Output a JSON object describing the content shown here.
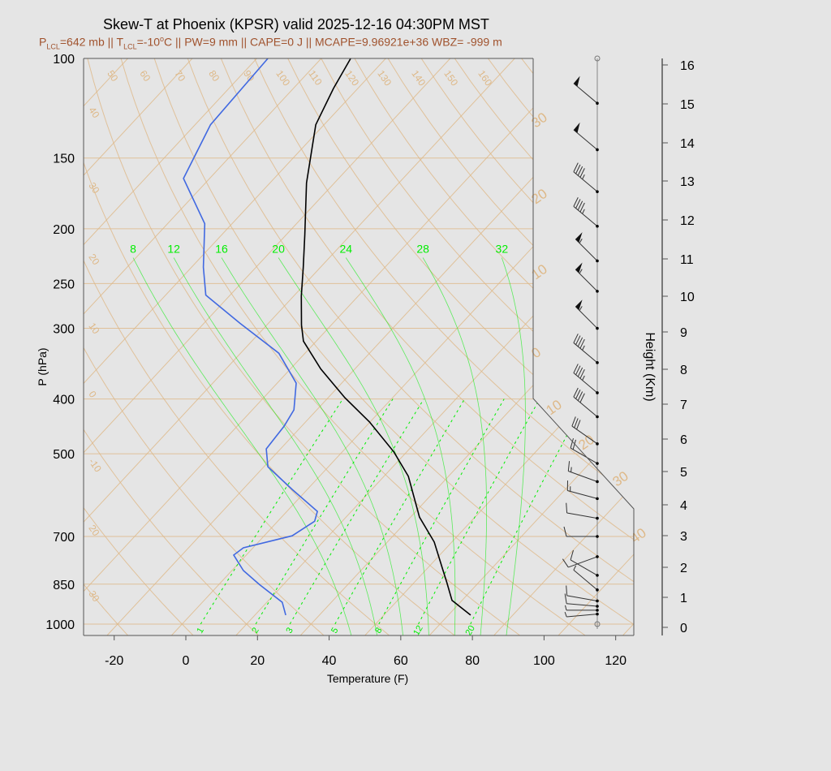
{
  "title": "Skew-T at Phoenix (KPSR) valid 2025-12-16 04:30PM MST",
  "subtitle": {
    "p_lcl_prefix": "P",
    "p_lcl_sub": "LCL",
    "p_lcl_value": "=642 mb || ",
    "t_lcl_prefix": "T",
    "t_lcl_sub": "LCL",
    "t_lcl_value": "=-10",
    "t_lcl_unit_sup": "o",
    "t_lcl_rest": "C || PW=9 mm || CAPE=0 J || MCAPE=9.96921e+36 WBZ= -999 m"
  },
  "colors": {
    "temperature": "#000000",
    "dewpoint": "#4169e1",
    "grid": "#deb887",
    "moist": "#00ee00",
    "subtitle": "#a0522d"
  },
  "chart_data": {
    "type": "line",
    "xlabel": "Temperature (F)",
    "ylabel": "P (hPa)",
    "y2label": "Height (Km)",
    "x_ticks": [
      -20,
      0,
      20,
      40,
      60,
      80,
      100,
      120
    ],
    "xlim": [
      -28,
      125
    ],
    "y_ticks": [
      100,
      150,
      200,
      250,
      300,
      400,
      500,
      700,
      850,
      1000
    ],
    "ylim": [
      1050,
      100
    ],
    "y_scale": "log",
    "y2_ticks": [
      0,
      1,
      2,
      3,
      4,
      5,
      6,
      7,
      8,
      9,
      10,
      11,
      12,
      13,
      14,
      15,
      16
    ],
    "skewed": true,
    "series": [
      {
        "key": "temperature",
        "points": [
          [
            964,
            74.2
          ],
          [
            908,
            65.2
          ],
          [
            845,
            59.2
          ],
          [
            796,
            54.1
          ],
          [
            716,
            45.1
          ],
          [
            647,
            34.5
          ],
          [
            548,
            20.8
          ],
          [
            496,
            10.4
          ],
          [
            439,
            -4.2
          ],
          [
            398,
            -17.3
          ],
          [
            354,
            -31.5
          ],
          [
            316,
            -43.6
          ],
          [
            296,
            -48.3
          ],
          [
            263,
            -55.9
          ],
          [
            234,
            -62.8
          ],
          [
            205,
            -70.8
          ],
          [
            166,
            -83.8
          ],
          [
            131,
            -96.3
          ],
          [
            113,
            -100.8
          ],
          [
            100,
            -103.8
          ]
        ]
      },
      {
        "key": "dewpoint",
        "points": [
          [
            964,
            22.6
          ],
          [
            915,
            18.3
          ],
          [
            851,
            7.3
          ],
          [
            804,
            -0.8
          ],
          [
            755,
            -7.5
          ],
          [
            733,
            -6.7
          ],
          [
            698,
            3.8
          ],
          [
            658,
            6.3
          ],
          [
            632,
            4.5
          ],
          [
            578,
            -8.2
          ],
          [
            527,
            -20.9
          ],
          [
            490,
            -26.0
          ],
          [
            447,
            -26.9
          ],
          [
            418,
            -28.4
          ],
          [
            375,
            -34.7
          ],
          [
            332,
            -47.3
          ],
          [
            294,
            -65.9
          ],
          [
            262,
            -82.8
          ],
          [
            234,
            -90.7
          ],
          [
            196,
            -101.6
          ],
          [
            163,
            -119.3
          ],
          [
            131,
            -125.7
          ],
          [
            100,
            -126.9
          ]
        ]
      }
    ],
    "mixing_ratio_labels": [
      "1",
      "2",
      "3",
      "5",
      "8",
      "12",
      "20"
    ],
    "mixing_ratios_gkg": [
      1,
      2,
      3,
      5,
      8,
      12,
      20
    ],
    "moist_adiabat_labels": [
      "8",
      "12",
      "16",
      "20",
      "24",
      "28",
      "32"
    ],
    "moist_adiabats_c": [
      8,
      12,
      16,
      20,
      24,
      28,
      32
    ],
    "dry_adiabat_labels": [
      "50",
      "60",
      "70",
      "80",
      "90",
      "100",
      "110",
      "120",
      "130",
      "140",
      "150",
      "160"
    ],
    "isotherm_labels_left": [
      "40",
      "30",
      "20",
      "10",
      "0",
      "-10",
      "20",
      "30"
    ],
    "isotherm_labels_right": [
      "30",
      "20",
      "10",
      "0",
      "10",
      "20",
      "30",
      "40"
    ],
    "wind_barbs": [
      {
        "p": 120,
        "dir": 310,
        "kt": 50
      },
      {
        "p": 145,
        "dir": 310,
        "kt": 50
      },
      {
        "p": 172,
        "dir": 310,
        "kt": 45
      },
      {
        "p": 198,
        "dir": 310,
        "kt": 45
      },
      {
        "p": 228,
        "dir": 315,
        "kt": 55
      },
      {
        "p": 258,
        "dir": 315,
        "kt": 55
      },
      {
        "p": 300,
        "dir": 315,
        "kt": 55
      },
      {
        "p": 345,
        "dir": 310,
        "kt": 45
      },
      {
        "p": 390,
        "dir": 310,
        "kt": 45
      },
      {
        "p": 430,
        "dir": 310,
        "kt": 40
      },
      {
        "p": 480,
        "dir": 305,
        "kt": 30
      },
      {
        "p": 520,
        "dir": 300,
        "kt": 20
      },
      {
        "p": 560,
        "dir": 290,
        "kt": 15
      },
      {
        "p": 600,
        "dir": 285,
        "kt": 15
      },
      {
        "p": 650,
        "dir": 280,
        "kt": 10
      },
      {
        "p": 700,
        "dir": 270,
        "kt": 10
      },
      {
        "p": 760,
        "dir": 250,
        "kt": 10
      },
      {
        "p": 820,
        "dir": 300,
        "kt": 10
      },
      {
        "p": 870,
        "dir": 310,
        "kt": 5
      },
      {
        "p": 910,
        "dir": 280,
        "kt": 10
      },
      {
        "p": 930,
        "dir": 275,
        "kt": 10
      },
      {
        "p": 945,
        "dir": 270,
        "kt": 5
      },
      {
        "p": 960,
        "dir": 265,
        "kt": 5
      }
    ]
  }
}
